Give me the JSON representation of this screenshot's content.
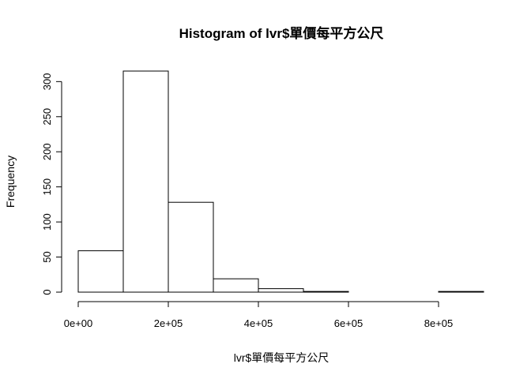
{
  "chart_data": {
    "type": "bar",
    "title": "Histogram of lvr$單價每平方公尺",
    "xlabel": "lvr$單價每平方公尺",
    "ylabel": "Frequency",
    "bins": [
      {
        "start": 0,
        "end": 100000,
        "count": 59
      },
      {
        "start": 100000,
        "end": 200000,
        "count": 315
      },
      {
        "start": 200000,
        "end": 300000,
        "count": 128
      },
      {
        "start": 300000,
        "end": 400000,
        "count": 19
      },
      {
        "start": 400000,
        "end": 500000,
        "count": 5
      },
      {
        "start": 500000,
        "end": 600000,
        "count": 1
      },
      {
        "start": 600000,
        "end": 700000,
        "count": 0
      },
      {
        "start": 700000,
        "end": 800000,
        "count": 0
      },
      {
        "start": 800000,
        "end": 900000,
        "count": 1
      }
    ],
    "x_ticks": [
      {
        "value": 0,
        "label": "0e+00"
      },
      {
        "value": 200000,
        "label": "2e+05"
      },
      {
        "value": 400000,
        "label": "4e+05"
      },
      {
        "value": 600000,
        "label": "6e+05"
      },
      {
        "value": 800000,
        "label": "8e+05"
      }
    ],
    "y_ticks": [
      {
        "value": 0,
        "label": "0"
      },
      {
        "value": 50,
        "label": "50"
      },
      {
        "value": 100,
        "label": "100"
      },
      {
        "value": 150,
        "label": "150"
      },
      {
        "value": 200,
        "label": "200"
      },
      {
        "value": 250,
        "label": "250"
      },
      {
        "value": 300,
        "label": "300"
      }
    ],
    "xlim": [
      0,
      900000
    ],
    "ylim": [
      0,
      315
    ],
    "grid": false,
    "legend": "none"
  }
}
